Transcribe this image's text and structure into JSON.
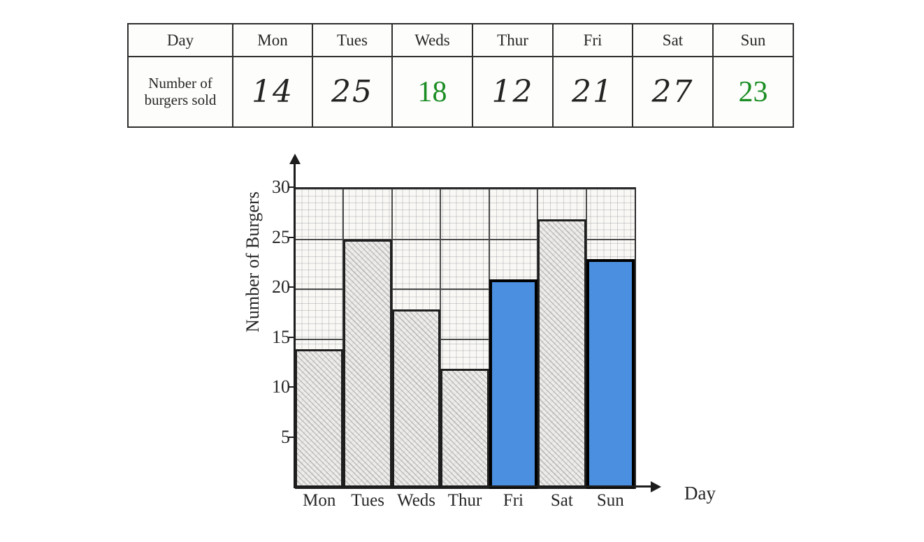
{
  "table": {
    "header": [
      "Day",
      "Mon",
      "Tues",
      "Weds",
      "Thur",
      "Fri",
      "Sat",
      "Sun"
    ],
    "row_label": "Number of burgers sold",
    "values": [
      {
        "day": "Mon",
        "value": "14",
        "style": "handwritten"
      },
      {
        "day": "Tues",
        "value": "25",
        "style": "handwritten"
      },
      {
        "day": "Weds",
        "value": "18",
        "style": "typed-green"
      },
      {
        "day": "Thur",
        "value": "12",
        "style": "handwritten"
      },
      {
        "day": "Fri",
        "value": "21",
        "style": "handwritten"
      },
      {
        "day": "Sat",
        "value": "27",
        "style": "handwritten"
      },
      {
        "day": "Sun",
        "value": "23",
        "style": "typed-green"
      }
    ]
  },
  "chart": {
    "y_axis_title": "Number of Burgers",
    "x_axis_title": "Day",
    "y_ticks": [
      "30",
      "25",
      "20",
      "15",
      "10",
      "5"
    ]
  },
  "chart_data": {
    "type": "bar",
    "categories": [
      "Mon",
      "Tues",
      "Weds",
      "Thur",
      "Fri",
      "Sat",
      "Sun"
    ],
    "values": [
      14,
      25,
      18,
      12,
      21,
      27,
      23
    ],
    "title": "",
    "xlabel": "Day",
    "ylabel": "Number of Burgers",
    "ylim": [
      0,
      30
    ],
    "gridlines": {
      "major_interval": 5,
      "fine_grid": true
    },
    "legend": "none",
    "bar_styles": [
      "hatched",
      "hatched",
      "hatched",
      "hatched",
      "blue",
      "hatched",
      "blue"
    ],
    "colors": {
      "highlight_blue": "#4a8fe0",
      "hatch_fill": "#edecea",
      "green_text": "#1a8d23",
      "ink": "#262626"
    }
  }
}
